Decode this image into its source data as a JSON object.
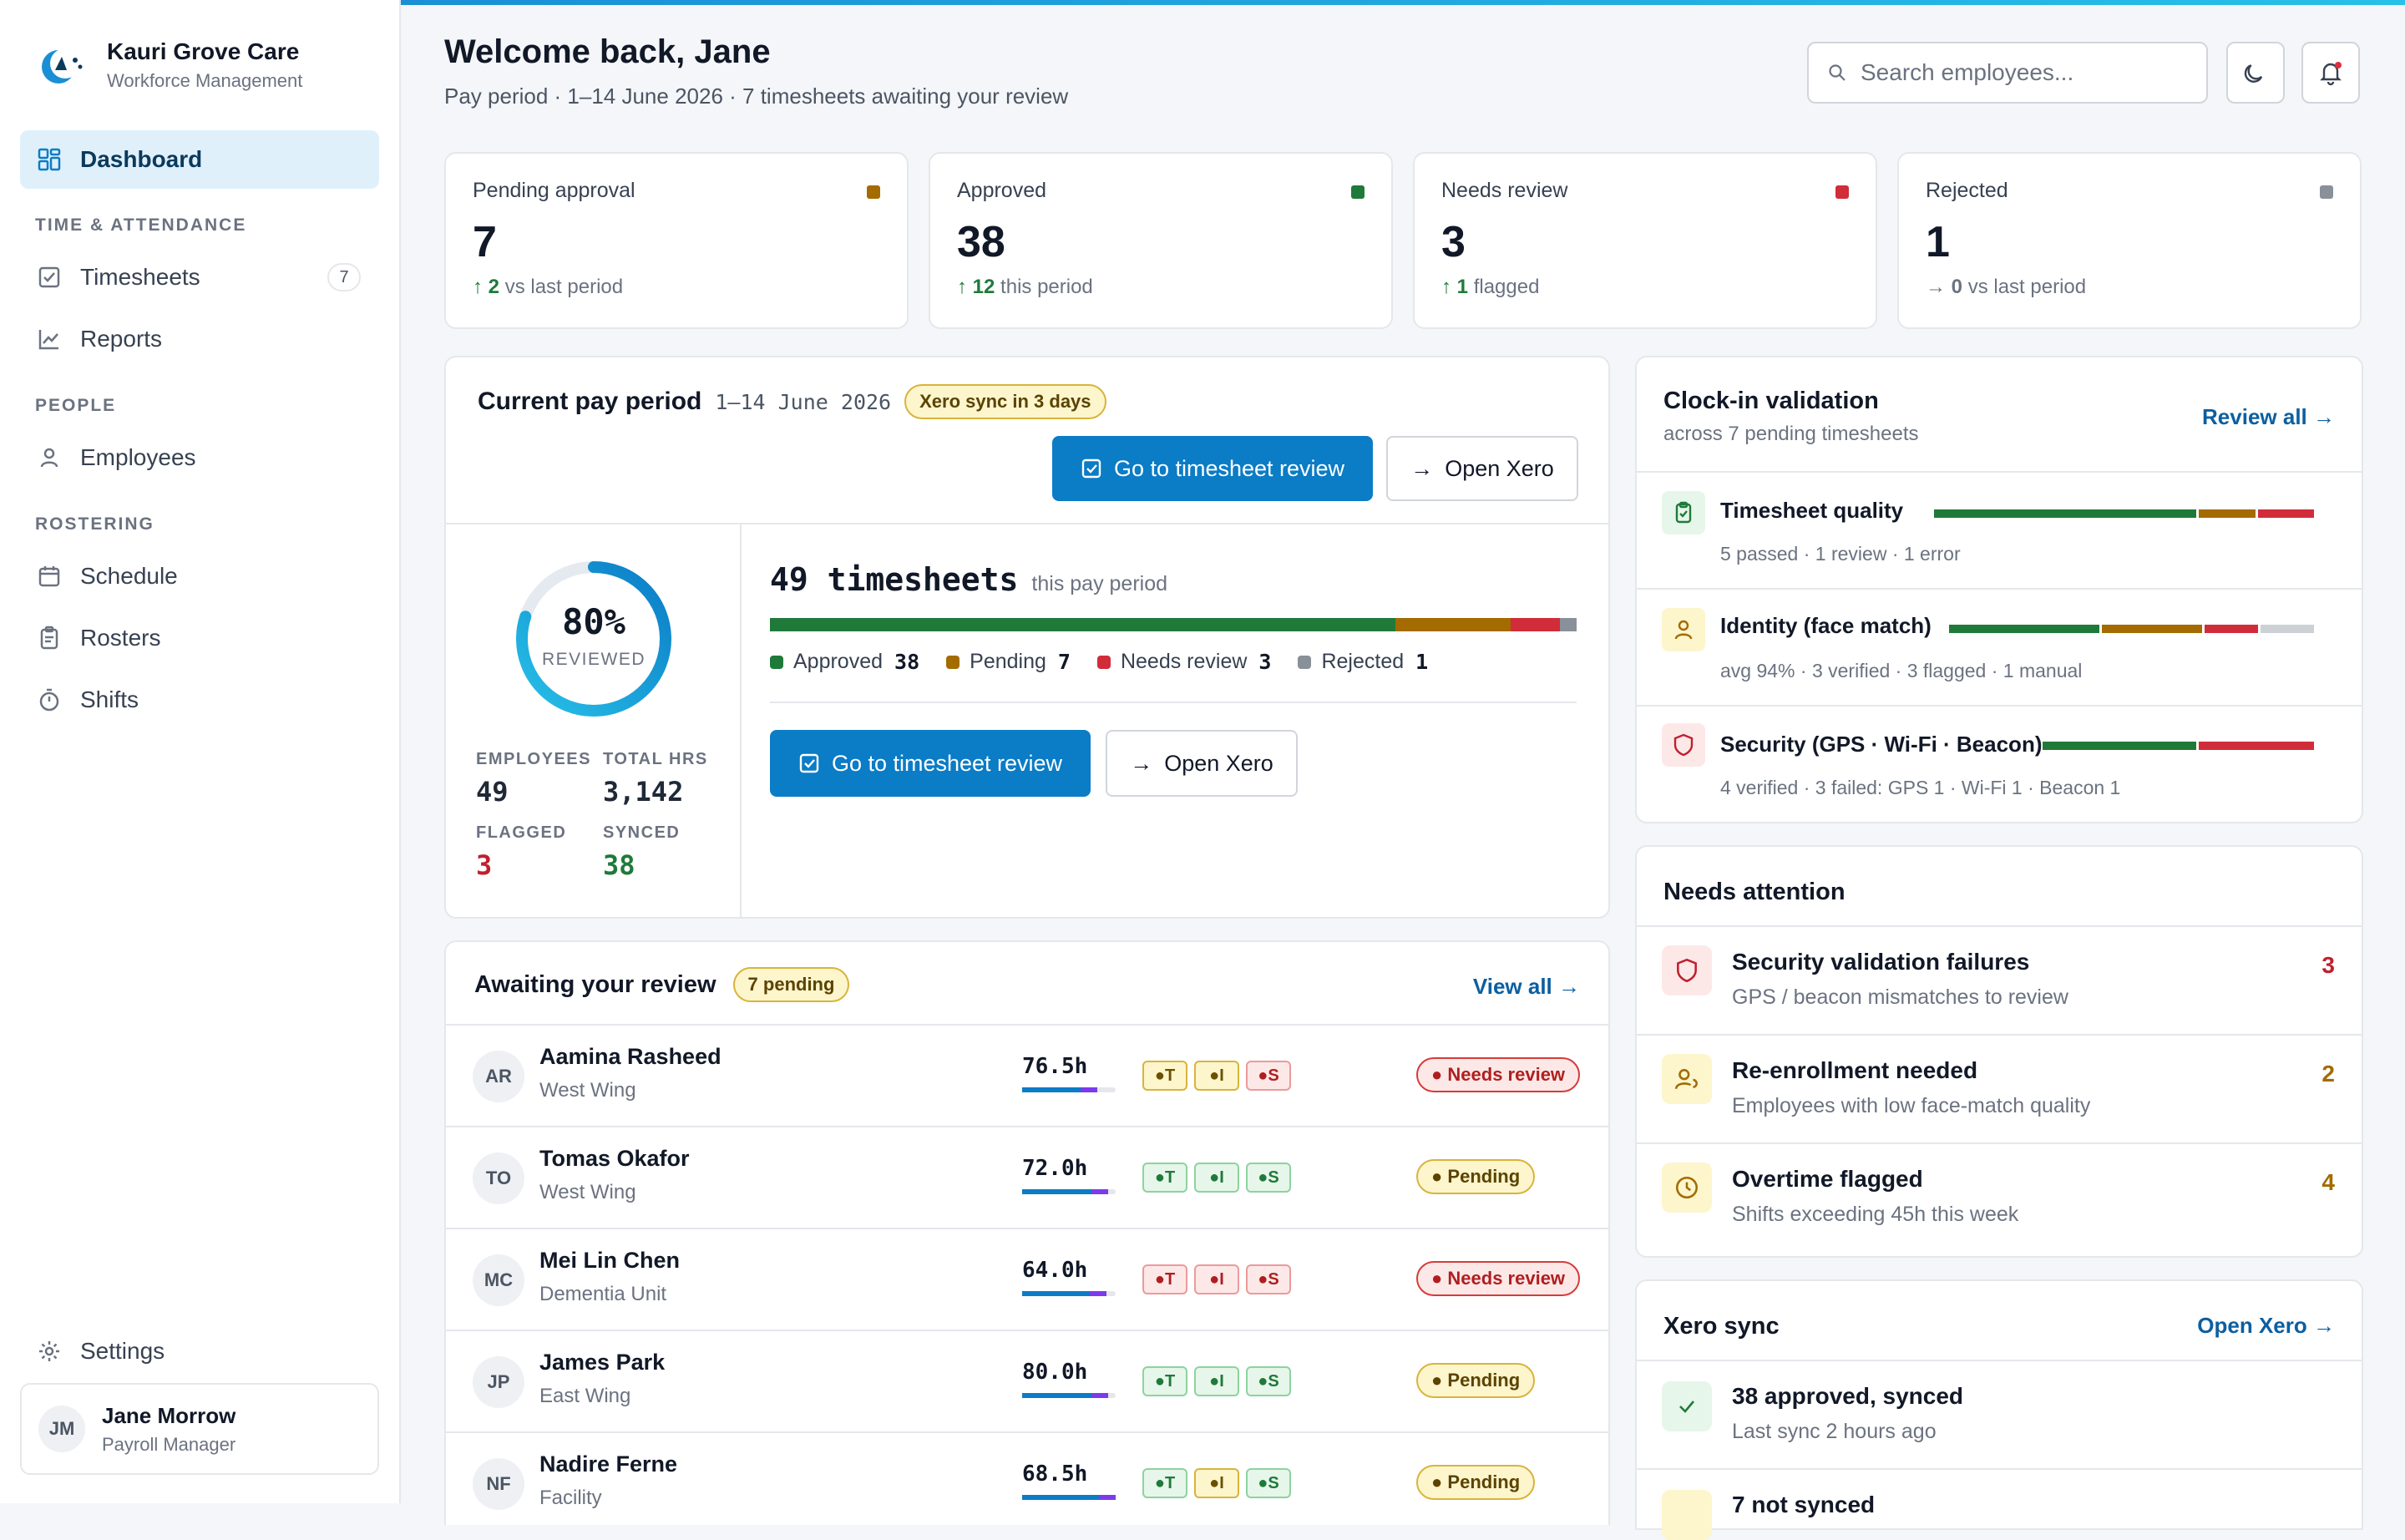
{
  "brand": {
    "name": "Kauri Grove Care",
    "subtitle": "Workforce Management"
  },
  "nav": {
    "dashboard": "Dashboard",
    "section_time": "TIME & ATTENDANCE",
    "timesheets": "Timesheets",
    "timesheets_count": "7",
    "reports": "Reports",
    "section_people": "PEOPLE",
    "employees": "Employees",
    "section_rostering": "ROSTERING",
    "schedule": "Schedule",
    "rosters": "Rosters",
    "shifts": "Shifts",
    "settings": "Settings"
  },
  "user": {
    "initials": "JM",
    "name": "Jane Morrow",
    "role": "Payroll Manager"
  },
  "header": {
    "welcome": "Welcome back, Jane",
    "subtitle": "Pay period · 1–14 June 2026 · 7 timesheets awaiting your review",
    "search_placeholder": "Search employees..."
  },
  "colors": {
    "approved": "#1f7a3a",
    "pending": "#a36b00",
    "needs_review": "#d12c3a",
    "rejected": "#8a9099",
    "accent": "#0b7cc6"
  },
  "stats": [
    {
      "title": "Pending approval",
      "value": "7",
      "arrow": "↑",
      "delta": "2",
      "delta_text": "vs last period",
      "color": "#a36b00"
    },
    {
      "title": "Approved",
      "value": "38",
      "arrow": "↑",
      "delta": "12",
      "delta_text": "this period",
      "color": "#1f7a3a"
    },
    {
      "title": "Needs review",
      "value": "3",
      "arrow": "↑",
      "delta": "1",
      "delta_text": "flagged",
      "color": "#d12c3a"
    },
    {
      "title": "Rejected",
      "value": "1",
      "arrow": "→",
      "delta": "0",
      "delta_text": "vs last period",
      "color": "#8a9099"
    }
  ],
  "pay_period": {
    "title": "Current pay period",
    "dates": "1–14 June 2026",
    "sync_badge": "Xero sync in 3 days",
    "btn_review": "Go to timesheet review",
    "btn_xero": "Open Xero",
    "reviewed_pct": "80%",
    "reviewed_fraction": 0.8,
    "reviewed_label": "REVIEWED",
    "employees_label": "EMPLOYEES",
    "employees": "49",
    "hours_label": "TOTAL HRS",
    "hours": "3,142",
    "flagged_label": "FLAGGED",
    "flagged": "3",
    "synced_label": "SYNCED",
    "synced": "38",
    "timesheets_total": "49 timesheets",
    "timesheets_suffix": "this pay period",
    "breakdown": [
      {
        "label": "Approved",
        "value": 38,
        "color": "#1f7a3a"
      },
      {
        "label": "Pending",
        "value": 7,
        "color": "#a36b00"
      },
      {
        "label": "Needs review",
        "value": 3,
        "color": "#d12c3a"
      },
      {
        "label": "Rejected",
        "value": 1,
        "color": "#8a9099"
      }
    ]
  },
  "awaiting": {
    "title": "Awaiting your review",
    "badge": "7 pending",
    "view_all": "View all →",
    "rows": [
      {
        "initials": "AR",
        "name": "Aamina Rasheed",
        "unit": "West Wing",
        "hours": "76.5h",
        "bar_pct": 0.76,
        "checks": [
          "a",
          "a",
          "r"
        ],
        "status": "Needs review",
        "status_type": "red"
      },
      {
        "initials": "TO",
        "name": "Tomas Okafor",
        "unit": "West Wing",
        "hours": "72.0h",
        "bar_pct": 0.9,
        "checks": [
          "g",
          "g",
          "g"
        ],
        "status": "Pending",
        "status_type": "amber"
      },
      {
        "initials": "MC",
        "name": "Mei Lin Chen",
        "unit": "Dementia Unit",
        "hours": "64.0h",
        "bar_pct": 0.88,
        "checks": [
          "r",
          "r",
          "r"
        ],
        "status": "Needs review",
        "status_type": "red"
      },
      {
        "initials": "JP",
        "name": "James Park",
        "unit": "East Wing",
        "hours": "80.0h",
        "bar_pct": 0.9,
        "checks": [
          "g",
          "g",
          "g"
        ],
        "status": "Pending",
        "status_type": "amber"
      },
      {
        "initials": "NF",
        "name": "Nadire Ferne",
        "unit": "Facility",
        "hours": "68.5h",
        "bar_pct": 1.0,
        "checks": [
          "g",
          "a",
          "g"
        ],
        "status": "Pending",
        "status_type": "amber"
      }
    ],
    "chip_letters": [
      "T",
      "I",
      "S"
    ]
  },
  "validation": {
    "title": "Clock-in validation",
    "subtitle": "across 7 pending timesheets",
    "review_all": "Review all →",
    "items": [
      {
        "name": "Timesheet quality",
        "sub": "5 passed · 1 review · 1 error",
        "segments": [
          {
            "v": 0.7,
            "c": "#1f7a3a"
          },
          {
            "v": 0.15,
            "c": "#a36b00"
          },
          {
            "v": 0.15,
            "c": "#d12c3a"
          }
        ]
      },
      {
        "name": "Identity (face match)",
        "sub": "avg 94% · 3 verified · 3 flagged · 1 manual",
        "segments": [
          {
            "v": 0.42,
            "c": "#1f7a3a"
          },
          {
            "v": 0.28,
            "c": "#a36b00"
          },
          {
            "v": 0.15,
            "c": "#d12c3a"
          },
          {
            "v": 0.15,
            "c": "#cdd1d6"
          }
        ]
      },
      {
        "name": "Security (GPS · Wi-Fi · Beacon)",
        "sub": "4 verified · 3 failed: GPS 1 · Wi-Fi 1 · Beacon 1",
        "segments": [
          {
            "v": 0.57,
            "c": "#1f7a3a"
          },
          {
            "v": 0.43,
            "c": "#d12c3a"
          }
        ]
      }
    ]
  },
  "attention": {
    "title": "Needs attention",
    "items": [
      {
        "name": "Security validation failures",
        "sub": "GPS / beacon mismatches to review",
        "count": "3",
        "color": "#c0202e"
      },
      {
        "name": "Re-enrollment needed",
        "sub": "Employees with low face-match quality",
        "count": "2",
        "color": "#a36b00"
      },
      {
        "name": "Overtime flagged",
        "sub": "Shifts exceeding 45h this week",
        "count": "4",
        "color": "#a36b00"
      }
    ]
  },
  "xero": {
    "title": "Xero sync",
    "open": "Open Xero →",
    "synced": "38 approved, synced",
    "last_sync": "Last sync 2 hours ago",
    "not_synced": "7 not synced"
  }
}
